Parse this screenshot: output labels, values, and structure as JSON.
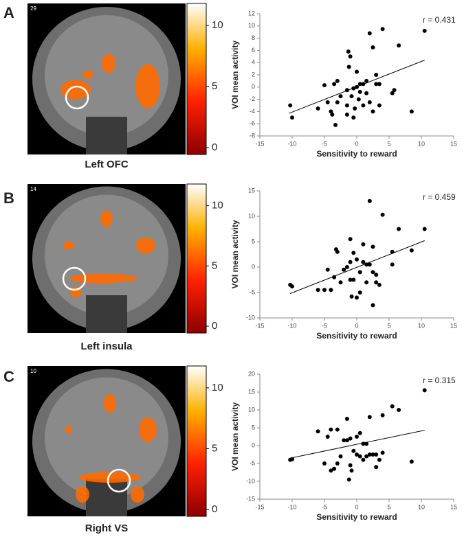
{
  "chart_data": [
    {
      "type": "scatter",
      "panel_label": "A",
      "image_caption": "Left OFC",
      "slice_number": "29",
      "colorbar": {
        "ylim": [
          0,
          11.8
        ],
        "yticks": [
          0,
          5,
          10
        ]
      },
      "x_label": "Sensitivity to reward",
      "y_label": "VOI mean activity",
      "annotation": "r = 0.431",
      "xlim": [
        -15,
        15
      ],
      "xticks": [
        -15,
        -10,
        -5,
        0,
        5,
        10,
        15
      ],
      "ylim": [
        -8,
        12
      ],
      "yticks": [
        -8,
        -6,
        -4,
        -2,
        0,
        2,
        4,
        6,
        8,
        10,
        12
      ],
      "color": "#000000",
      "x": [
        -10.3,
        -10,
        -6,
        -5,
        -4.5,
        -4,
        -3.8,
        -3.5,
        -3.3,
        -3,
        -3,
        -2.5,
        -1.5,
        -1.5,
        -1.5,
        -1.3,
        -1.2,
        -1,
        -0.8,
        -0.5,
        -0.5,
        -0.3,
        0,
        0,
        0.3,
        0.5,
        0.5,
        1,
        1,
        1.5,
        1.5,
        2,
        2,
        2.5,
        2.5,
        3,
        3,
        3.5,
        3.5,
        4,
        5.5,
        5.8,
        6.5,
        8.5,
        10.5
      ],
      "y": [
        -3,
        -5,
        -3.5,
        0.3,
        -2.5,
        -4,
        -4.5,
        0.5,
        -6.2,
        -2.5,
        1,
        -1.5,
        -3,
        -4.5,
        -0.5,
        5.8,
        3.3,
        5,
        -1.5,
        -0.2,
        -5,
        -3.5,
        2.5,
        0,
        -2,
        0.5,
        -0.8,
        0.5,
        -3,
        1,
        -1,
        8.8,
        -2.5,
        6.5,
        -4,
        2,
        0.5,
        0.5,
        -3,
        9.5,
        -1,
        -0.5,
        6.8,
        -4,
        9.2
      ],
      "trendline": {
        "x": [
          -10.5,
          10.5
        ],
        "y": [
          -4.3,
          4.4
        ]
      }
    },
    {
      "type": "scatter",
      "panel_label": "B",
      "image_caption": "Left insula",
      "slice_number": "14",
      "colorbar": {
        "ylim": [
          0,
          11.8
        ],
        "yticks": [
          0,
          5,
          10
        ]
      },
      "x_label": "Sensitivity to reward",
      "y_label": "VOI mean activity",
      "annotation": "r = 0.459",
      "xlim": [
        -15,
        15
      ],
      "xticks": [
        -15,
        -10,
        -5,
        0,
        5,
        10,
        15
      ],
      "ylim": [
        -10,
        15
      ],
      "yticks": [
        -10,
        -5,
        0,
        5,
        10,
        15
      ],
      "color": "#000000",
      "x": [
        -10.3,
        -10,
        -6,
        -5,
        -4.5,
        -4,
        -3.5,
        -3.2,
        -3,
        -2.5,
        -2,
        -1.5,
        -1,
        -1,
        -1,
        -0.8,
        -0.5,
        -0.5,
        0,
        0,
        0.5,
        0.5,
        1,
        1,
        1.5,
        1.5,
        2,
        2,
        2.5,
        2.5,
        2.5,
        3,
        3,
        3.5,
        4,
        5.5,
        5.5,
        6.5,
        8.5,
        10.5
      ],
      "y": [
        -3.5,
        -3.8,
        -4.5,
        -4.5,
        -0.5,
        -4.5,
        -2,
        3.5,
        3,
        -3,
        -0.5,
        0,
        -2.5,
        1,
        5.5,
        -5.8,
        2.8,
        -2.5,
        -6,
        1.5,
        -1,
        -5,
        1,
        4.5,
        -3,
        0.5,
        13,
        0.5,
        -7.5,
        -1,
        4,
        -1.5,
        -3,
        -3.5,
        10.3,
        0.5,
        3,
        7.5,
        3.3,
        7.5
      ],
      "trendline": {
        "x": [
          -10.3,
          10.5
        ],
        "y": [
          -5.2,
          5.2
        ]
      }
    },
    {
      "type": "scatter",
      "panel_label": "C",
      "image_caption": "Right VS",
      "slice_number": "10",
      "colorbar": {
        "ylim": [
          0,
          11.8
        ],
        "yticks": [
          0,
          5,
          10
        ]
      },
      "x_label": "Sensitivity to reward",
      "y_label": "VOI mean activity",
      "annotation": "r = 0.315",
      "xlim": [
        -15,
        15
      ],
      "xticks": [
        -15,
        -10,
        -5,
        0,
        5,
        10,
        15
      ],
      "ylim": [
        -15,
        20
      ],
      "yticks": [
        -15,
        -10,
        -5,
        0,
        5,
        10,
        15,
        20
      ],
      "color": "#000000",
      "x": [
        -10.3,
        -10,
        -6,
        -5,
        -4.5,
        -4,
        -4,
        -3.5,
        -3,
        -3,
        -2.5,
        -2,
        -1.5,
        -1.5,
        -1.2,
        -1,
        -1,
        -0.8,
        -0.5,
        0,
        0,
        0.5,
        0.5,
        1,
        1,
        1.5,
        1.5,
        2,
        2,
        2.5,
        3,
        3,
        3.5,
        4,
        4,
        5.5,
        6.5,
        8.5,
        10.5
      ],
      "y": [
        -4,
        -3.8,
        4,
        -5,
        2.5,
        4.5,
        -7,
        -6.5,
        -5,
        4.5,
        -3,
        1.5,
        1.5,
        7.5,
        -9.5,
        2,
        -5.5,
        -7,
        -1.5,
        2.5,
        -2.5,
        3.5,
        -3,
        -4,
        0.5,
        0.5,
        -3,
        -2.5,
        8,
        -2.5,
        -2.5,
        -6,
        -4,
        -2,
        8.5,
        11,
        10,
        -4.5,
        15.5
      ],
      "trendline": {
        "x": [
          -10.3,
          10.5
        ],
        "y": [
          -3.5,
          4.3
        ]
      }
    }
  ]
}
